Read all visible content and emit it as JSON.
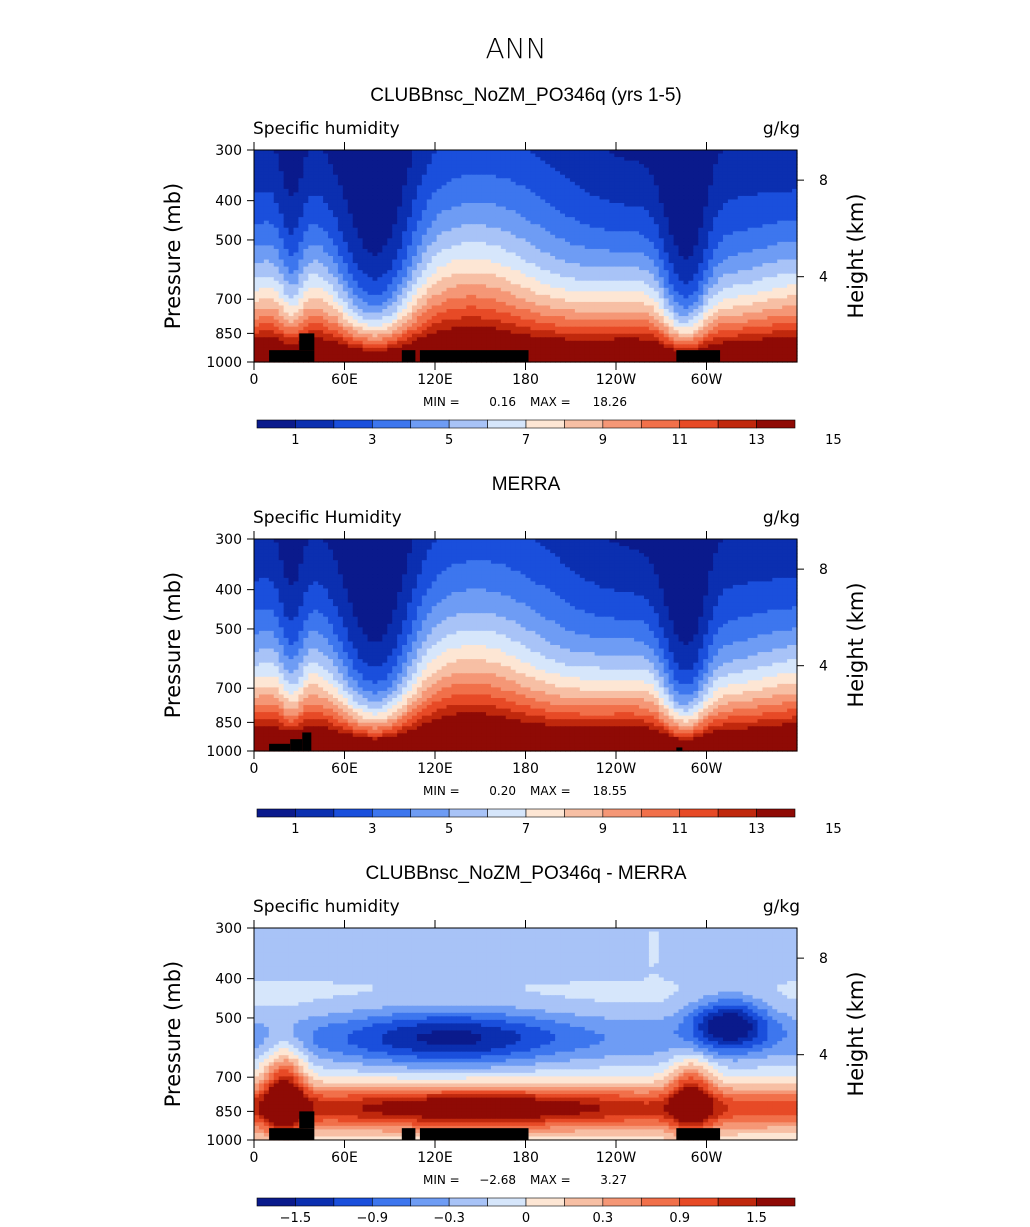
{
  "figure": {
    "title": "ANN"
  },
  "colors": {
    "palette": [
      "#0a1a8c",
      "#0b2fb0",
      "#1a4fdc",
      "#3d76ee",
      "#6e9cf4",
      "#a8c3f7",
      "#d6e6fb",
      "#fde6d4",
      "#f7bfa4",
      "#f59776",
      "#f1704a",
      "#e74a26",
      "#c0280d",
      "#8f0a05"
    ],
    "diff_palette": [
      "#0a1a8c",
      "#0b2fb0",
      "#1a4fdc",
      "#3d76ee",
      "#6e9cf4",
      "#a8c3f7",
      "#d6e6fb",
      "#fde6d4",
      "#f7bfa4",
      "#f59776",
      "#f1704a",
      "#e74a26",
      "#c0280d",
      "#8f0a05"
    ],
    "land": "#000000"
  },
  "chart_data": [
    {
      "type": "heatmap",
      "title": "CLUBBnsc_NoZM_PO346q (yrs 1-5)",
      "variable_label": "Specific humidity",
      "units": "g/kg",
      "xlabel": "",
      "ylabel": "Pressure (mb)",
      "ylabel_right": "Height (km)",
      "x_ticks": [
        "0",
        "60E",
        "120E",
        "180",
        "120W",
        "60W"
      ],
      "y_ticks": [
        "300",
        "400",
        "500",
        "700",
        "850",
        "1000"
      ],
      "y_values": [
        300,
        400,
        500,
        700,
        850,
        1000
      ],
      "right_ticks": [
        "8",
        "4"
      ],
      "right_values": [
        8,
        4
      ],
      "ylim": [
        300,
        1000
      ],
      "xlim": [
        0,
        360
      ],
      "min_label": "MIN =",
      "min_value": "0.16",
      "max_label": "MAX =",
      "max_value": "18.26",
      "colorbar_ticks": [
        "1",
        "3",
        "5",
        "7",
        "9",
        "11",
        "13",
        "15"
      ],
      "colorbar_levels": [
        0,
        1,
        2,
        3,
        4,
        5,
        6,
        7,
        8,
        9,
        10,
        11,
        12,
        13,
        14,
        15,
        16
      ],
      "field": "mean",
      "surface_scale": 1.0,
      "land_blocks": [
        [
          10,
          40,
          1000,
          935
        ],
        [
          30,
          40,
          935,
          850
        ],
        [
          98,
          107,
          1000,
          935
        ],
        [
          110,
          182,
          1000,
          935
        ],
        [
          280,
          309,
          1000,
          935
        ]
      ]
    },
    {
      "type": "heatmap",
      "title": "MERRA",
      "variable_label": "Specific Humidity",
      "units": "g/kg",
      "xlabel": "",
      "ylabel": "Pressure (mb)",
      "ylabel_right": "Height (km)",
      "x_ticks": [
        "0",
        "60E",
        "120E",
        "180",
        "120W",
        "60W"
      ],
      "y_ticks": [
        "300",
        "400",
        "500",
        "700",
        "850",
        "1000"
      ],
      "y_values": [
        300,
        400,
        500,
        700,
        850,
        1000
      ],
      "right_ticks": [
        "8",
        "4"
      ],
      "right_values": [
        8,
        4
      ],
      "ylim": [
        300,
        1000
      ],
      "xlim": [
        0,
        360
      ],
      "min_label": "MIN =",
      "min_value": "0.20",
      "max_label": "MAX =",
      "max_value": "18.55",
      "colorbar_ticks": [
        "1",
        "3",
        "5",
        "7",
        "9",
        "11",
        "13",
        "15"
      ],
      "colorbar_levels": [
        0,
        1,
        2,
        3,
        4,
        5,
        6,
        7,
        8,
        9,
        10,
        11,
        12,
        13,
        14,
        15,
        16
      ],
      "field": "mean",
      "surface_scale": 1.02,
      "land_blocks": [
        [
          10,
          24,
          1000,
          960
        ],
        [
          24,
          32,
          1000,
          935
        ],
        [
          32,
          38,
          1000,
          900
        ],
        [
          280,
          284,
          1000,
          980
        ]
      ]
    },
    {
      "type": "heatmap",
      "title": "CLUBBnsc_NoZM_PO346q - MERRA",
      "variable_label": "Specific humidity",
      "units": "g/kg",
      "xlabel": "",
      "ylabel": "Pressure (mb)",
      "ylabel_right": "Height (km)",
      "x_ticks": [
        "0",
        "60E",
        "120E",
        "180",
        "120W",
        "60W"
      ],
      "y_ticks": [
        "300",
        "400",
        "500",
        "700",
        "850",
        "1000"
      ],
      "y_values": [
        300,
        400,
        500,
        700,
        850,
        1000
      ],
      "right_ticks": [
        "8",
        "4"
      ],
      "right_values": [
        8,
        4
      ],
      "ylim": [
        300,
        1000
      ],
      "xlim": [
        0,
        360
      ],
      "min_label": "MIN =",
      "min_value": "−2.68",
      "max_label": "MAX =",
      "max_value": "3.27",
      "colorbar_ticks": [
        "−1.5",
        "−0.9",
        "−0.3",
        "0",
        "0.3",
        "0.9",
        "1.5"
      ],
      "colorbar_levels": [
        -2.1,
        -1.8,
        -1.5,
        -1.2,
        -0.9,
        -0.6,
        -0.3,
        0,
        0.3,
        0.6,
        0.9,
        1.2,
        1.5,
        1.8,
        2.1
      ],
      "field": "diff",
      "surface_scale": 1.0,
      "land_blocks": [
        [
          10,
          40,
          1000,
          935
        ],
        [
          30,
          40,
          935,
          850
        ],
        [
          98,
          107,
          1000,
          935
        ],
        [
          110,
          182,
          1000,
          935
        ],
        [
          280,
          309,
          1000,
          935
        ]
      ]
    }
  ]
}
